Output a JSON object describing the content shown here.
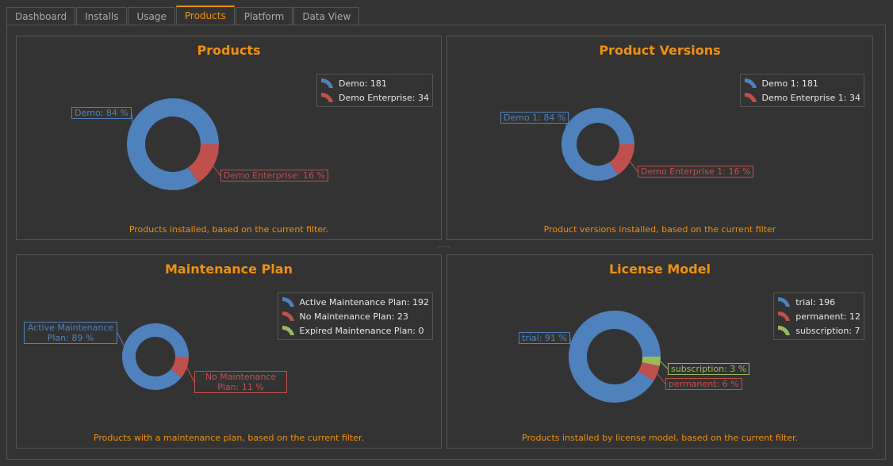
{
  "tabs": [
    {
      "label": "Dashboard",
      "active": false
    },
    {
      "label": "Installs",
      "active": false
    },
    {
      "label": "Usage",
      "active": false
    },
    {
      "label": "Products",
      "active": true
    },
    {
      "label": "Platform",
      "active": false
    },
    {
      "label": "Data View",
      "active": false
    }
  ],
  "colors": {
    "accent": "#f0900f",
    "blue": "#4f81bd",
    "red": "#c0504d",
    "green": "#9bbb59"
  },
  "chart_data": [
    {
      "type": "pie",
      "donut": true,
      "title": "Products",
      "caption": "Products installed, based on the current filter.",
      "slices": [
        {
          "name": "Demo",
          "value": 181,
          "legend": "Demo: 181",
          "label": "Demo: 84 %",
          "color": "#4f81bd"
        },
        {
          "name": "Demo Enterprise",
          "value": 34,
          "legend": "Demo Enterprise: 34",
          "label": "Demo Enterprise: 16 %",
          "color": "#c0504d"
        }
      ],
      "legend_position": "top-right"
    },
    {
      "type": "pie",
      "donut": true,
      "title": "Product Versions",
      "caption": "Product versions installed, based on the current filter",
      "slices": [
        {
          "name": "Demo 1",
          "value": 181,
          "legend": "Demo 1: 181",
          "label": "Demo 1: 84 %",
          "color": "#4f81bd"
        },
        {
          "name": "Demo Enterprise 1",
          "value": 34,
          "legend": "Demo Enterprise 1: 34",
          "label": "Demo Enterprise 1: 16 %",
          "color": "#c0504d"
        }
      ],
      "legend_position": "top-right"
    },
    {
      "type": "pie",
      "donut": true,
      "title": "Maintenance Plan",
      "caption": "Products with a maintenance plan, based on the current filter.",
      "slices": [
        {
          "name": "Active Maintenance Plan",
          "value": 192,
          "legend": "Active Maintenance Plan: 192",
          "label": "Active Maintenance Plan: 89 %",
          "color": "#4f81bd"
        },
        {
          "name": "No Maintenance Plan",
          "value": 23,
          "legend": "No Maintenance Plan: 23",
          "label": "No Maintenance Plan: 11 %",
          "color": "#c0504d"
        },
        {
          "name": "Expired Maintenance Plan",
          "value": 0,
          "legend": "Expired Maintenance Plan: 0",
          "label": "",
          "color": "#9bbb59"
        }
      ],
      "legend_position": "top-right"
    },
    {
      "type": "pie",
      "donut": true,
      "title": "License Model",
      "caption": "Products installed by license model, based on the current filter.",
      "slices": [
        {
          "name": "trial",
          "value": 196,
          "legend": "trial: 196",
          "label": "trial: 91 %",
          "color": "#4f81bd"
        },
        {
          "name": "permanent",
          "value": 12,
          "legend": "permanent: 12",
          "label": "permanent: 6 %",
          "color": "#c0504d"
        },
        {
          "name": "subscription",
          "value": 7,
          "legend": "subscription: 7",
          "label": "subscription: 3 %",
          "color": "#9bbb59"
        }
      ],
      "legend_position": "top-right"
    }
  ]
}
